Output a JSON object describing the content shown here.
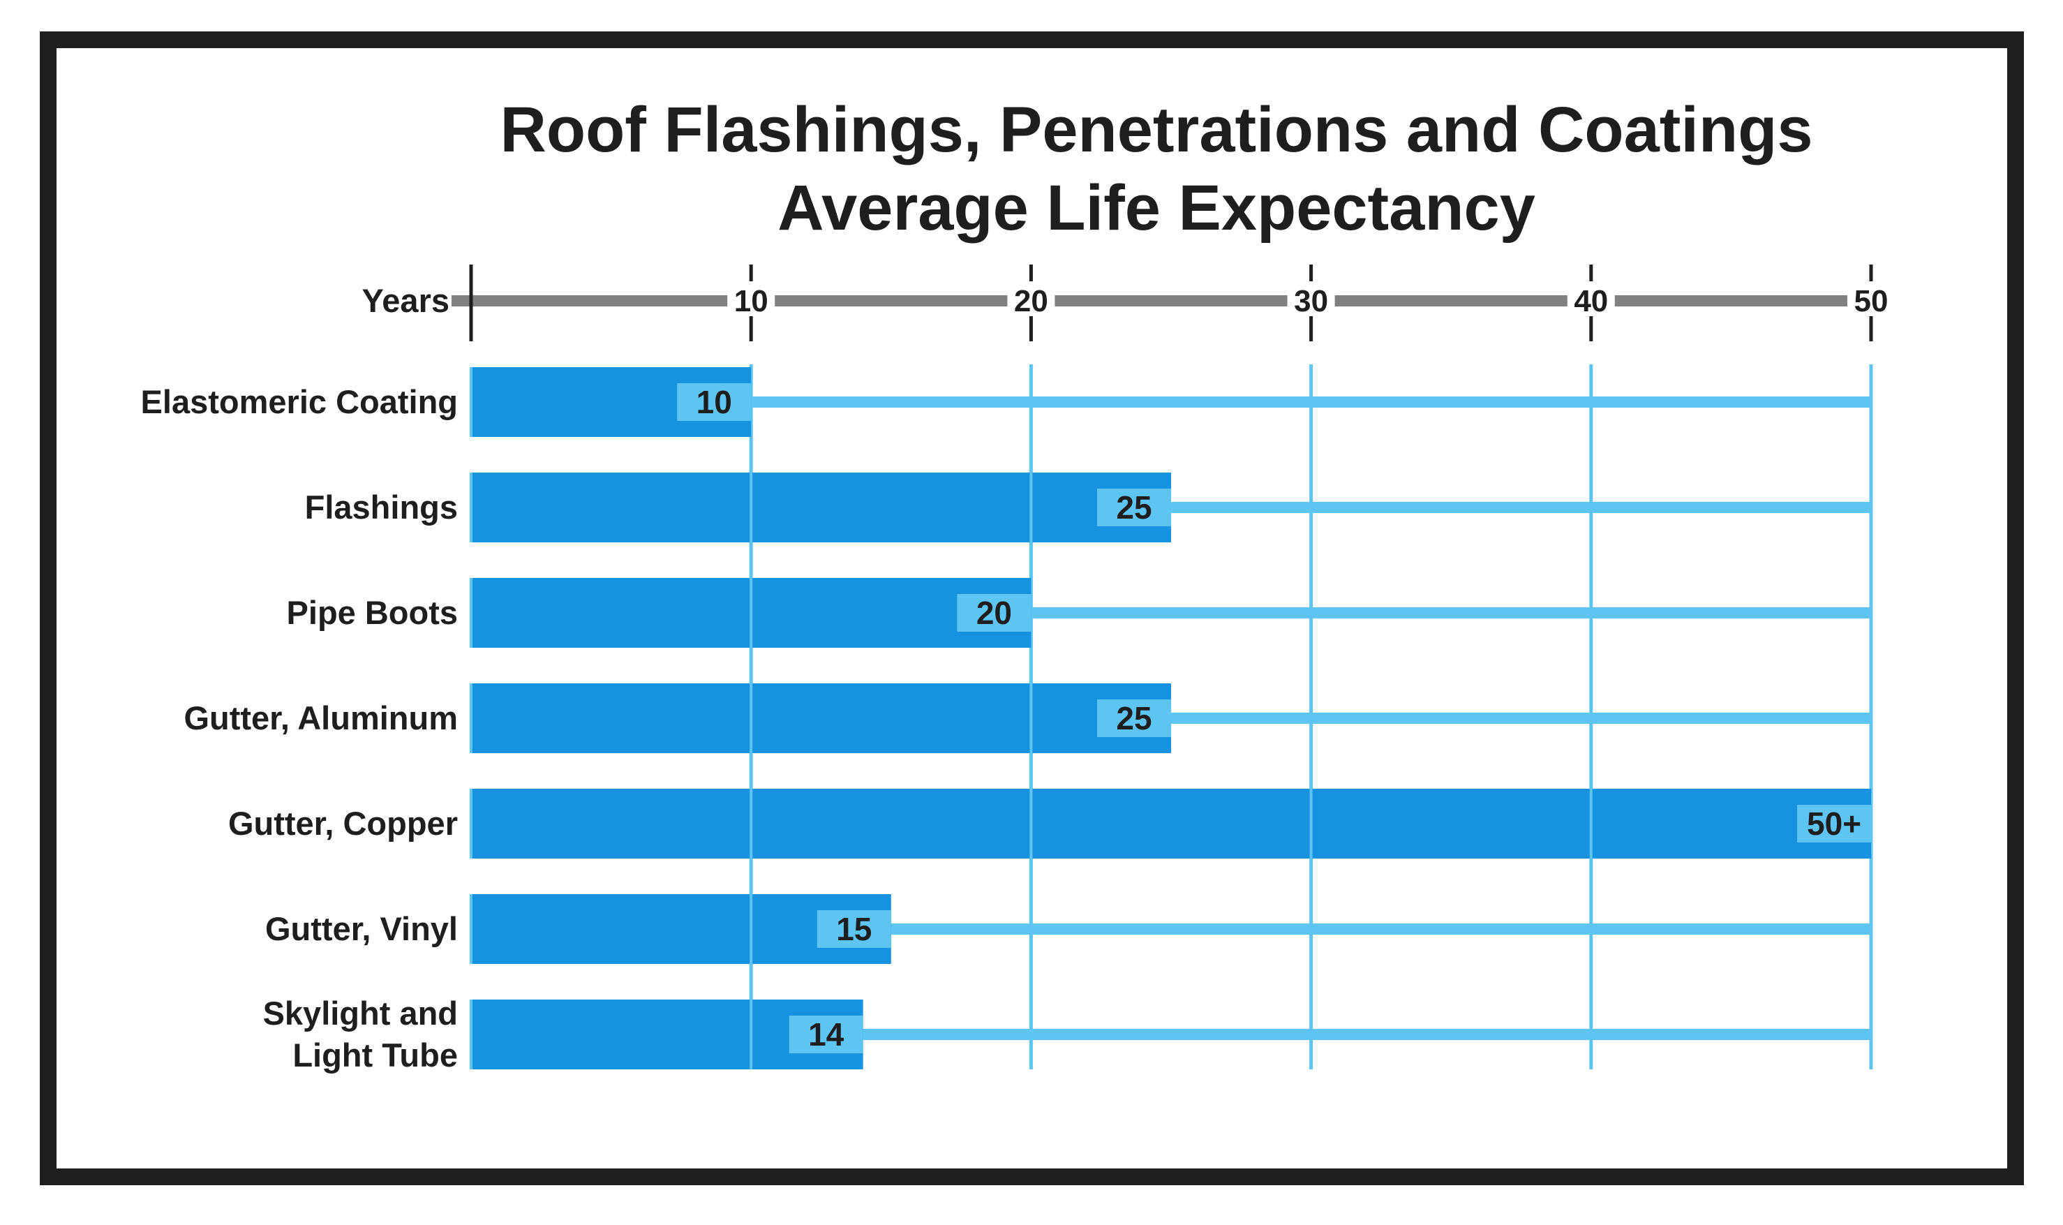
{
  "chart_data": {
    "type": "bar",
    "orientation": "horizontal",
    "title_lines": [
      "Roof Flashings, Penetrations and Coatings",
      "Average Life Expectancy"
    ],
    "axis_label": "Years",
    "xlim": [
      0,
      50
    ],
    "ticks": [
      "10",
      "20",
      "30",
      "40",
      "50"
    ],
    "tick_values": [
      10,
      20,
      30,
      40,
      50
    ],
    "categories": [
      [
        "Elastomeric Coating"
      ],
      [
        "Flashings"
      ],
      [
        "Pipe Boots"
      ],
      [
        "Gutter, Aluminum"
      ],
      [
        "Gutter, Copper"
      ],
      [
        "Gutter, Vinyl"
      ],
      [
        "Skylight and",
        "Light Tube"
      ]
    ],
    "values": [
      10,
      25,
      20,
      25,
      50,
      15,
      14
    ],
    "value_labels": [
      "10",
      "25",
      "20",
      "25",
      "50+",
      "15",
      "14"
    ],
    "grid": true,
    "colors": {
      "bar": "#1592e0",
      "value_badge": "#5ec4f2",
      "track": "#5ec4f2",
      "grid": "#5ec4f2",
      "axis": "#808080",
      "tick": "#1e1e1e",
      "text": "#1e1e1e",
      "frame": "#1e1e1e"
    }
  }
}
